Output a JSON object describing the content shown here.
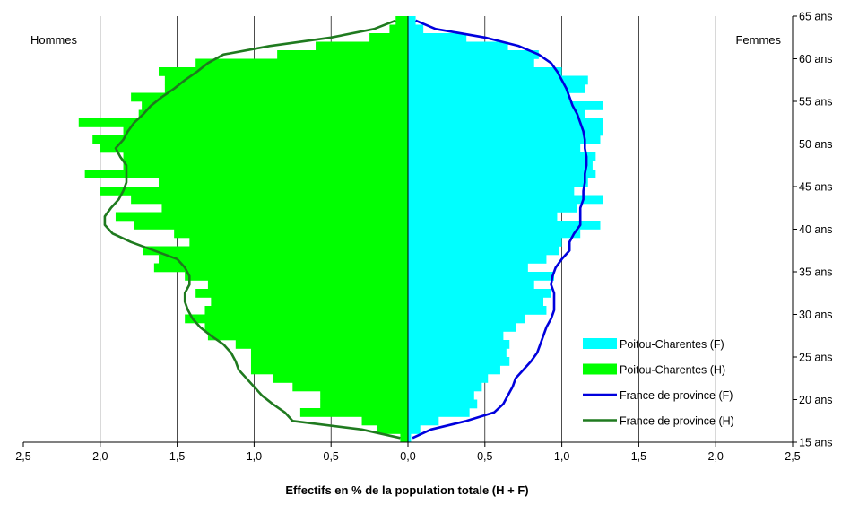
{
  "chart_data": {
    "type": "bar",
    "orientation": "horizontal-population-pyramid",
    "xlabel": "Effectifs en % de la population totale (H + F)",
    "x_ticks": [
      "2,5",
      "2,0",
      "1,5",
      "1,0",
      "0,5",
      "0,0",
      "0,5",
      "1,0",
      "1,5",
      "2,0",
      "2,5"
    ],
    "xlim": [
      -2.5,
      2.5
    ],
    "ylim": [
      15,
      65
    ],
    "y_ticks": [
      {
        "age": 15,
        "label": "15 ans"
      },
      {
        "age": 20,
        "label": "20 ans"
      },
      {
        "age": 25,
        "label": "25 ans"
      },
      {
        "age": 30,
        "label": "30 ans"
      },
      {
        "age": 35,
        "label": "35 ans"
      },
      {
        "age": 40,
        "label": "40 ans"
      },
      {
        "age": 45,
        "label": "45 ans"
      },
      {
        "age": 50,
        "label": "50 ans"
      },
      {
        "age": 55,
        "label": "55 ans"
      },
      {
        "age": 60,
        "label": "60 ans"
      },
      {
        "age": 65,
        "label": "65 ans"
      }
    ],
    "grid": "vertical",
    "legend_position": "bottom-right",
    "side_labels": {
      "left": "Hommes",
      "right": "Femmes"
    },
    "ages": [
      15,
      16,
      17,
      18,
      19,
      20,
      21,
      22,
      23,
      24,
      25,
      26,
      27,
      28,
      29,
      30,
      31,
      32,
      33,
      34,
      35,
      36,
      37,
      38,
      39,
      40,
      41,
      42,
      43,
      44,
      45,
      46,
      47,
      48,
      49,
      50,
      51,
      52,
      53,
      54,
      55,
      56,
      57,
      58,
      59,
      60,
      61,
      62,
      63,
      64
    ],
    "series": [
      {
        "name": "Poitou-Charentes (F)",
        "kind": "bar",
        "side": "right",
        "color": "#00FFFF",
        "values": [
          0.02,
          0.08,
          0.2,
          0.4,
          0.45,
          0.43,
          0.48,
          0.52,
          0.6,
          0.66,
          0.64,
          0.66,
          0.62,
          0.7,
          0.76,
          0.9,
          0.88,
          0.93,
          0.82,
          0.95,
          0.78,
          0.9,
          0.98,
          1.0,
          1.12,
          1.25,
          0.97,
          1.1,
          1.27,
          1.08,
          1.17,
          1.22,
          1.2,
          1.22,
          1.12,
          1.25,
          1.27,
          1.27,
          1.15,
          1.27,
          1.05,
          1.15,
          1.17,
          1.0,
          0.82,
          0.85,
          0.65,
          0.38,
          0.1,
          0.05
        ]
      },
      {
        "name": "Poitou-Charentes (H)",
        "kind": "bar",
        "side": "left",
        "color": "#00FF00",
        "values": [
          0.05,
          0.2,
          0.3,
          0.7,
          0.57,
          0.57,
          0.75,
          0.88,
          1.02,
          1.02,
          1.02,
          1.12,
          1.3,
          1.32,
          1.45,
          1.32,
          1.28,
          1.38,
          1.3,
          1.45,
          1.65,
          1.62,
          1.72,
          1.42,
          1.52,
          1.78,
          1.9,
          1.6,
          1.8,
          2.0,
          1.62,
          2.1,
          1.85,
          1.85,
          2.0,
          2.05,
          1.85,
          2.14,
          1.75,
          1.73,
          1.8,
          1.58,
          1.58,
          1.62,
          1.38,
          0.85,
          0.6,
          0.25,
          0.12,
          0.08
        ]
      },
      {
        "name": "France de province (F)",
        "kind": "line",
        "side": "right",
        "color": "#0000DD",
        "values": [
          0.03,
          0.15,
          0.38,
          0.56,
          0.62,
          0.65,
          0.68,
          0.7,
          0.75,
          0.8,
          0.84,
          0.86,
          0.88,
          0.9,
          0.93,
          0.95,
          0.95,
          0.95,
          0.93,
          0.94,
          0.96,
          1.0,
          1.05,
          1.05,
          1.08,
          1.12,
          1.12,
          1.12,
          1.14,
          1.14,
          1.15,
          1.15,
          1.16,
          1.16,
          1.15,
          1.15,
          1.14,
          1.12,
          1.1,
          1.07,
          1.05,
          1.03,
          1.0,
          0.97,
          0.93,
          0.85,
          0.72,
          0.5,
          0.18,
          0.05
        ]
      },
      {
        "name": "France de province (H)",
        "kind": "line",
        "side": "left",
        "color": "#1F7A1F",
        "values": [
          0.05,
          0.3,
          0.75,
          0.8,
          0.88,
          0.95,
          1.0,
          1.05,
          1.1,
          1.12,
          1.15,
          1.2,
          1.28,
          1.35,
          1.4,
          1.43,
          1.45,
          1.45,
          1.42,
          1.42,
          1.45,
          1.5,
          1.65,
          1.8,
          1.92,
          1.97,
          1.97,
          1.93,
          1.88,
          1.85,
          1.83,
          1.83,
          1.83,
          1.87,
          1.9,
          1.85,
          1.82,
          1.78,
          1.72,
          1.67,
          1.6,
          1.52,
          1.45,
          1.37,
          1.3,
          1.2,
          0.9,
          0.5,
          0.22,
          0.08
        ]
      }
    ]
  }
}
